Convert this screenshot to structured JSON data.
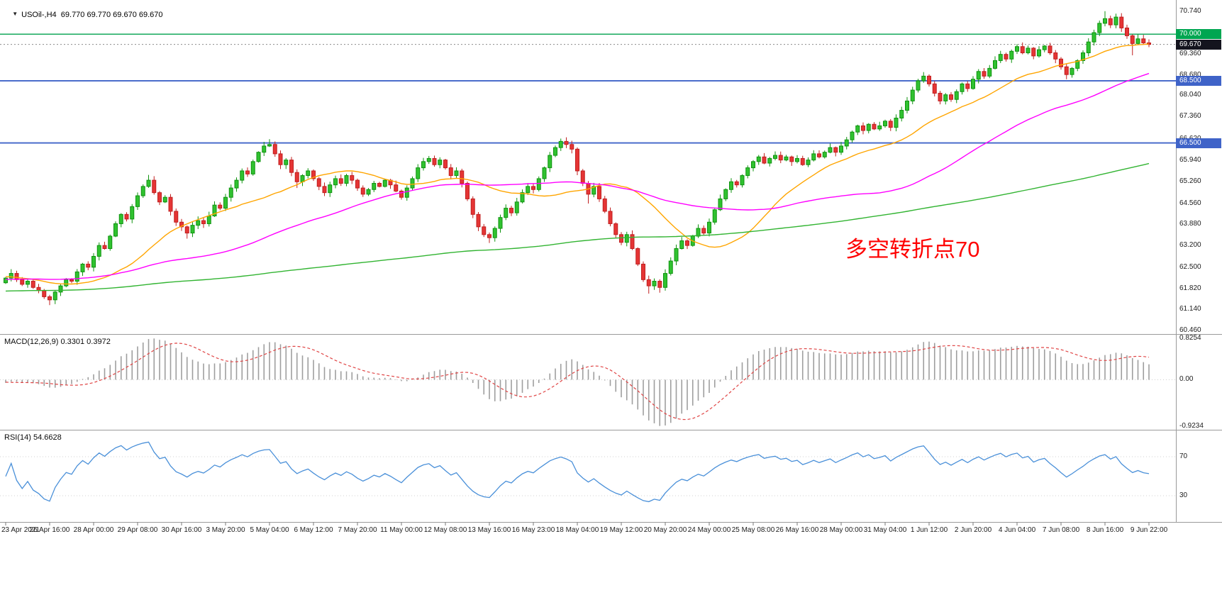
{
  "header": {
    "dropdown_icon": "▼",
    "symbol_line": "USOil-,H4  69.770 69.770 69.670 69.670"
  },
  "annotation": {
    "text": "多空转折点70",
    "color": "#ff0000"
  },
  "chart_data": {
    "type": "candlestick",
    "symbol": "USOil-",
    "timeframe": "H4",
    "ohlc_display": {
      "open": "69.770",
      "high": "69.770",
      "low": "69.670",
      "close": "69.670"
    },
    "price_pane": {
      "y_range": [
        60.35,
        71.1
      ],
      "axis_ticks": [
        "70.740",
        "69.360",
        "68.680",
        "68.040",
        "67.360",
        "66.620",
        "65.940",
        "65.260",
        "64.560",
        "63.880",
        "63.200",
        "62.500",
        "61.820",
        "61.140",
        "60.460"
      ],
      "hlines": [
        {
          "value": 70.0,
          "label": "70.000",
          "line_color": "#00a14e",
          "badge_bg": "#00a651"
        },
        {
          "value": 68.5,
          "label": "68.500",
          "line_color": "#3f63c8",
          "badge_bg": "#3f63c8"
        },
        {
          "value": 66.5,
          "label": "66.500",
          "line_color": "#3f63c8",
          "badge_bg": "#3f63c8"
        }
      ],
      "current": {
        "value": 69.67,
        "label": "69.670",
        "badge_bg": "#14141e",
        "line_color": "#8a8a8a"
      }
    },
    "candles": {
      "first_open": 62.0,
      "up_color": "#30c230",
      "up_stroke": "#0f930f",
      "down_color": "#e53535",
      "down_stroke": "#c01f1f",
      "closes": [
        62.15,
        62.3,
        62.1,
        61.95,
        62.05,
        61.85,
        61.75,
        61.55,
        61.45,
        61.7,
        61.9,
        62.1,
        62.05,
        62.35,
        62.6,
        62.5,
        62.85,
        63.2,
        63.1,
        63.5,
        63.9,
        64.2,
        64.05,
        64.45,
        64.8,
        65.1,
        65.3,
        64.9,
        64.6,
        64.75,
        64.3,
        63.95,
        63.8,
        63.6,
        63.85,
        64.0,
        63.9,
        64.15,
        64.5,
        64.4,
        64.75,
        65.05,
        65.3,
        65.6,
        65.5,
        65.9,
        66.2,
        66.4,
        66.45,
        66.15,
        65.8,
        65.95,
        65.55,
        65.25,
        65.45,
        65.6,
        65.35,
        65.1,
        64.9,
        65.15,
        65.35,
        65.2,
        65.45,
        65.3,
        65.05,
        64.85,
        65.0,
        65.2,
        65.1,
        65.3,
        65.15,
        64.95,
        64.75,
        65.05,
        65.35,
        65.7,
        65.9,
        66.0,
        65.8,
        65.95,
        65.7,
        65.45,
        65.6,
        65.2,
        64.7,
        64.2,
        63.8,
        63.55,
        63.45,
        63.75,
        64.1,
        64.4,
        64.25,
        64.6,
        64.9,
        65.1,
        65.0,
        65.35,
        65.7,
        66.1,
        66.35,
        66.55,
        66.45,
        66.3,
        65.6,
        65.2,
        64.85,
        65.1,
        64.7,
        64.3,
        63.9,
        63.55,
        63.3,
        63.55,
        63.1,
        62.6,
        62.1,
        61.9,
        62.05,
        61.85,
        62.3,
        62.7,
        63.1,
        63.35,
        63.2,
        63.5,
        63.75,
        63.6,
        63.95,
        64.35,
        64.7,
        65.0,
        65.25,
        65.15,
        65.45,
        65.7,
        65.9,
        66.05,
        65.85,
        66.0,
        66.1,
        65.95,
        66.05,
        65.9,
        66.0,
        65.8,
        65.95,
        66.15,
        66.05,
        66.2,
        66.35,
        66.2,
        66.4,
        66.6,
        66.85,
        67.05,
        66.9,
        67.1,
        66.95,
        67.05,
        67.2,
        67.0,
        67.3,
        67.55,
        67.85,
        68.2,
        68.5,
        68.65,
        68.4,
        68.1,
        67.85,
        68.05,
        67.9,
        68.15,
        68.4,
        68.25,
        68.55,
        68.8,
        68.65,
        68.9,
        69.15,
        69.35,
        69.2,
        69.45,
        69.6,
        69.4,
        69.55,
        69.3,
        69.5,
        69.62,
        69.4,
        69.2,
        68.95,
        68.7,
        68.9,
        69.15,
        69.4,
        69.75,
        70.05,
        70.35,
        70.5,
        70.3,
        70.55,
        70.2,
        69.95,
        69.7,
        69.85,
        69.72,
        69.67
      ],
      "wick_overrides": {
        "8": {
          "l": 61.28
        },
        "26": {
          "h": 65.47
        },
        "33": {
          "l": 63.42
        },
        "48": {
          "h": 66.62
        },
        "53": {
          "l": 65.05
        },
        "77": {
          "h": 66.08
        },
        "88": {
          "l": 63.28
        },
        "101": {
          "h": 66.64
        },
        "106": {
          "l": 64.55
        },
        "117": {
          "l": 61.65
        },
        "119": {
          "l": 61.68
        },
        "167": {
          "h": 68.78
        },
        "184": {
          "h": 69.68
        },
        "193": {
          "l": 68.55
        },
        "200": {
          "h": 70.74
        },
        "202": {
          "h": 70.66
        },
        "205": {
          "l": 69.32
        }
      }
    },
    "moving_averages": [
      {
        "name": "ma-fast",
        "period": 21,
        "color": "#ffa500"
      },
      {
        "name": "ma-medium",
        "period": 56,
        "color": "#ff00ff"
      },
      {
        "name": "ma-slow",
        "period": 200,
        "color": "#32b432"
      }
    ],
    "macd_pane": {
      "label": "MACD(12,26,9) 0.3301 0.3972",
      "fast": 12,
      "slow": 26,
      "signal": 9,
      "value": 0.3301,
      "signal_value": 0.3972,
      "axis_max": 0.8254,
      "axis_min": -0.9234,
      "axis_marks": [
        {
          "v": 0.8254,
          "label": "0.8254"
        },
        {
          "v": 0,
          "label": "0.00"
        },
        {
          "v": -0.9234,
          "label": "-0.9234"
        }
      ],
      "hist_color": "#9e9e9e",
      "signal_color": "#e04545"
    },
    "rsi_pane": {
      "label": "RSI(14) 54.6628",
      "period": 14,
      "value": 54.6628,
      "axis_marks": [
        {
          "v": 70,
          "label": "70"
        },
        {
          "v": 30,
          "label": "30"
        }
      ],
      "line_color": "#4a90d9"
    },
    "time_axis": {
      "bars_per_label": 8,
      "labels": [
        "23 Apr 2021",
        "26 Apr 16:00",
        "28 Apr 00:00",
        "29 Apr 08:00",
        "30 Apr 16:00",
        "3 May 20:00",
        "5 May 04:00",
        "6 May 12:00",
        "7 May 20:00",
        "11 May 00:00",
        "12 May 08:00",
        "13 May 16:00",
        "16 May 23:00",
        "18 May 04:00",
        "19 May 12:00",
        "20 May 20:00",
        "24 May 00:00",
        "25 May 08:00",
        "26 May 16:00",
        "28 May 00:00",
        "31 May 04:00",
        "1 Jun 12:00",
        "2 Jun 20:00",
        "4 Jun 04:00",
        "7 Jun 08:00",
        "8 Jun 16:00",
        "9 Jun 22:00"
      ]
    }
  }
}
